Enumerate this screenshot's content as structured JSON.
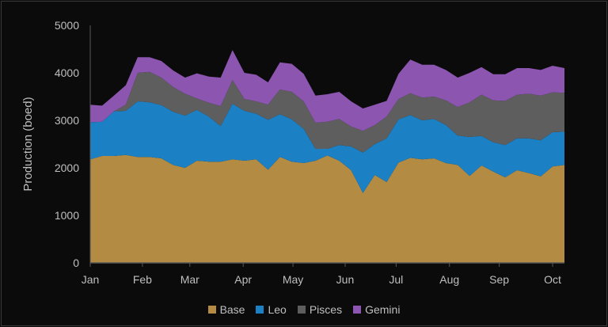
{
  "chart_data": {
    "type": "area",
    "stacked": true,
    "title": "",
    "xlabel": "",
    "ylabel": "Production (boed)",
    "ylim": [
      0,
      5000
    ],
    "yticks": [
      0,
      1000,
      2000,
      3000,
      4000,
      5000
    ],
    "xlim": [
      0,
      40
    ],
    "x_unit": "week index",
    "xticks": [
      {
        "label": "Jan",
        "x": 0
      },
      {
        "label": "Feb",
        "x": 4.4
      },
      {
        "label": "Mar",
        "x": 8.4
      },
      {
        "label": "Apr",
        "x": 12.9
      },
      {
        "label": "May",
        "x": 17.1
      },
      {
        "label": "Jun",
        "x": 21.5
      },
      {
        "label": "Jul",
        "x": 25.8
      },
      {
        "label": "Aug",
        "x": 30.3
      },
      {
        "label": "Sep",
        "x": 34.5
      },
      {
        "label": "Oct",
        "x": 39
      }
    ],
    "legend_position": "bottom",
    "series": [
      {
        "name": "Base",
        "color": "#b38b42",
        "values": [
          2180,
          2250,
          2250,
          2270,
          2230,
          2230,
          2200,
          2060,
          2000,
          2150,
          2130,
          2130,
          2180,
          2150,
          2180,
          1960,
          2230,
          2130,
          2100,
          2150,
          2260,
          2150,
          1950,
          1470,
          1850,
          1700,
          2110,
          2210,
          2180,
          2200,
          2100,
          2060,
          1830,
          2050,
          1920,
          1800,
          1950,
          1890,
          1820,
          2030,
          2060
        ]
      },
      {
        "name": "Leo",
        "color": "#1b80c4",
        "values": [
          780,
          720,
          940,
          930,
          1170,
          1150,
          1120,
          1120,
          1100,
          1070,
          950,
          750,
          1170,
          1050,
          960,
          1050,
          900,
          890,
          720,
          250,
          140,
          330,
          500,
          850,
          650,
          920,
          910,
          900,
          820,
          830,
          800,
          620,
          820,
          620,
          620,
          680,
          670,
          730,
          760,
          720,
          700
        ]
      },
      {
        "name": "Pisces",
        "color": "#5e5e5e",
        "values": [
          0,
          0,
          0,
          130,
          600,
          640,
          580,
          520,
          460,
          240,
          290,
          420,
          500,
          250,
          260,
          320,
          520,
          580,
          580,
          550,
          570,
          550,
          420,
          460,
          400,
          460,
          430,
          460,
          480,
          470,
          520,
          600,
          730,
          870,
          880,
          930,
          920,
          940,
          940,
          840,
          820
        ]
      },
      {
        "name": "Gemini",
        "color": "#8b55b0",
        "values": [
          370,
          340,
          330,
          410,
          330,
          310,
          350,
          350,
          340,
          530,
          550,
          600,
          630,
          550,
          560,
          470,
          570,
          590,
          580,
          570,
          580,
          570,
          530,
          470,
          430,
          330,
          530,
          710,
          690,
          670,
          640,
          620,
          620,
          580,
          550,
          560,
          560,
          540,
          540,
          560,
          520
        ]
      }
    ]
  }
}
